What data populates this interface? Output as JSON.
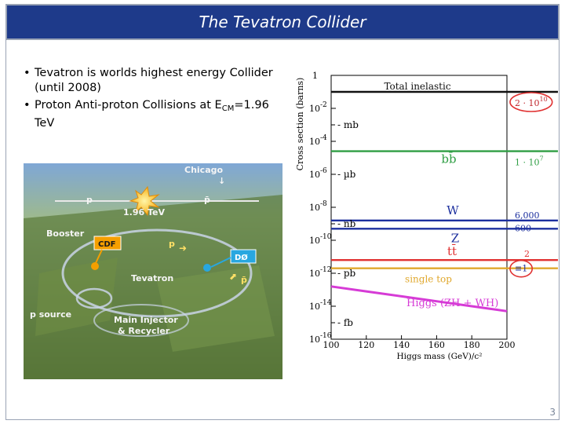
{
  "slide": {
    "title": "The Tevatron Collider",
    "page_number": "3",
    "bullets": [
      {
        "text": "Tevatron is worlds highest energy Collider (until 2008)"
      },
      {
        "prefix": "Proton Anti-proton Collisions at E",
        "sub": "CM",
        "suffix": "=1.96 TeV"
      }
    ]
  },
  "photo": {
    "labels": {
      "chicago": "Chicago",
      "energy": "1.96 TeV",
      "booster": "Booster",
      "cdf": "CDF",
      "d0": "DØ",
      "tevatron": "Tevatron",
      "p_source": "p source",
      "main_injector": "Main Injector",
      "recycler": "& Recycler",
      "p": "p",
      "pbar": "p̄"
    }
  },
  "chart_data": {
    "type": "line",
    "xlabel": "Higgs mass (GeV)/c²",
    "ylabel": "Cross section (barns)",
    "xlim": [
      100,
      200
    ],
    "ylim_log10": [
      -16,
      0
    ],
    "x_ticks": [
      100,
      120,
      140,
      160,
      180,
      200
    ],
    "y_ticks": [
      {
        "exp": 0,
        "label": "1"
      },
      {
        "exp": -2,
        "label": "10-2"
      },
      {
        "exp": -4,
        "label": "10-4"
      },
      {
        "exp": -6,
        "label": "10-6"
      },
      {
        "exp": -8,
        "label": "10-8"
      },
      {
        "exp": -10,
        "label": "10-10"
      },
      {
        "exp": -12,
        "label": "10-12"
      },
      {
        "exp": -14,
        "label": "10-14"
      },
      {
        "exp": -16,
        "label": "10-16"
      }
    ],
    "unit_marks": [
      {
        "exp": -3,
        "label": "mb"
      },
      {
        "exp": -6,
        "label": "µb"
      },
      {
        "exp": -9,
        "label": "nb"
      },
      {
        "exp": -12,
        "label": "pb"
      },
      {
        "exp": -15,
        "label": "fb"
      }
    ],
    "series": [
      {
        "name": "Total inelastic",
        "log10_y": -1.0,
        "color": "#111111",
        "right_label": "2 · 10",
        "right_label_sup": "10",
        "right_color": "#c0262d",
        "circled": true
      },
      {
        "name": "bb̄",
        "log10_y": -4.6,
        "color": "#2f9e44",
        "right_label": "1 · 10",
        "right_label_sup": "7",
        "right_color": "#2f9e44"
      },
      {
        "name": "W",
        "log10_y": -8.8,
        "color": "#1c2f9e",
        "right_label": "6,000",
        "right_color": "#1c2f9e"
      },
      {
        "name": "Z",
        "log10_y": -9.3,
        "color": "#1c2f9e",
        "right_label": "600",
        "right_color": "#1c2f9e"
      },
      {
        "name": "tt̄",
        "log10_y": -11.2,
        "color": "#e03131",
        "right_label": "2",
        "right_color": "#e03131"
      },
      {
        "name": "single top",
        "log10_y": -11.7,
        "color": "#e0a82e",
        "right_label": "≡1",
        "right_color": "#1c2f9e",
        "circled": true
      },
      {
        "name": "Higgs (ZH + WH)",
        "color": "#d63bd6",
        "x": [
          100,
          120,
          140,
          160,
          180,
          200
        ],
        "log10_y": [
          -12.8,
          -13.1,
          -13.4,
          -13.7,
          -14.0,
          -14.3
        ]
      }
    ]
  }
}
